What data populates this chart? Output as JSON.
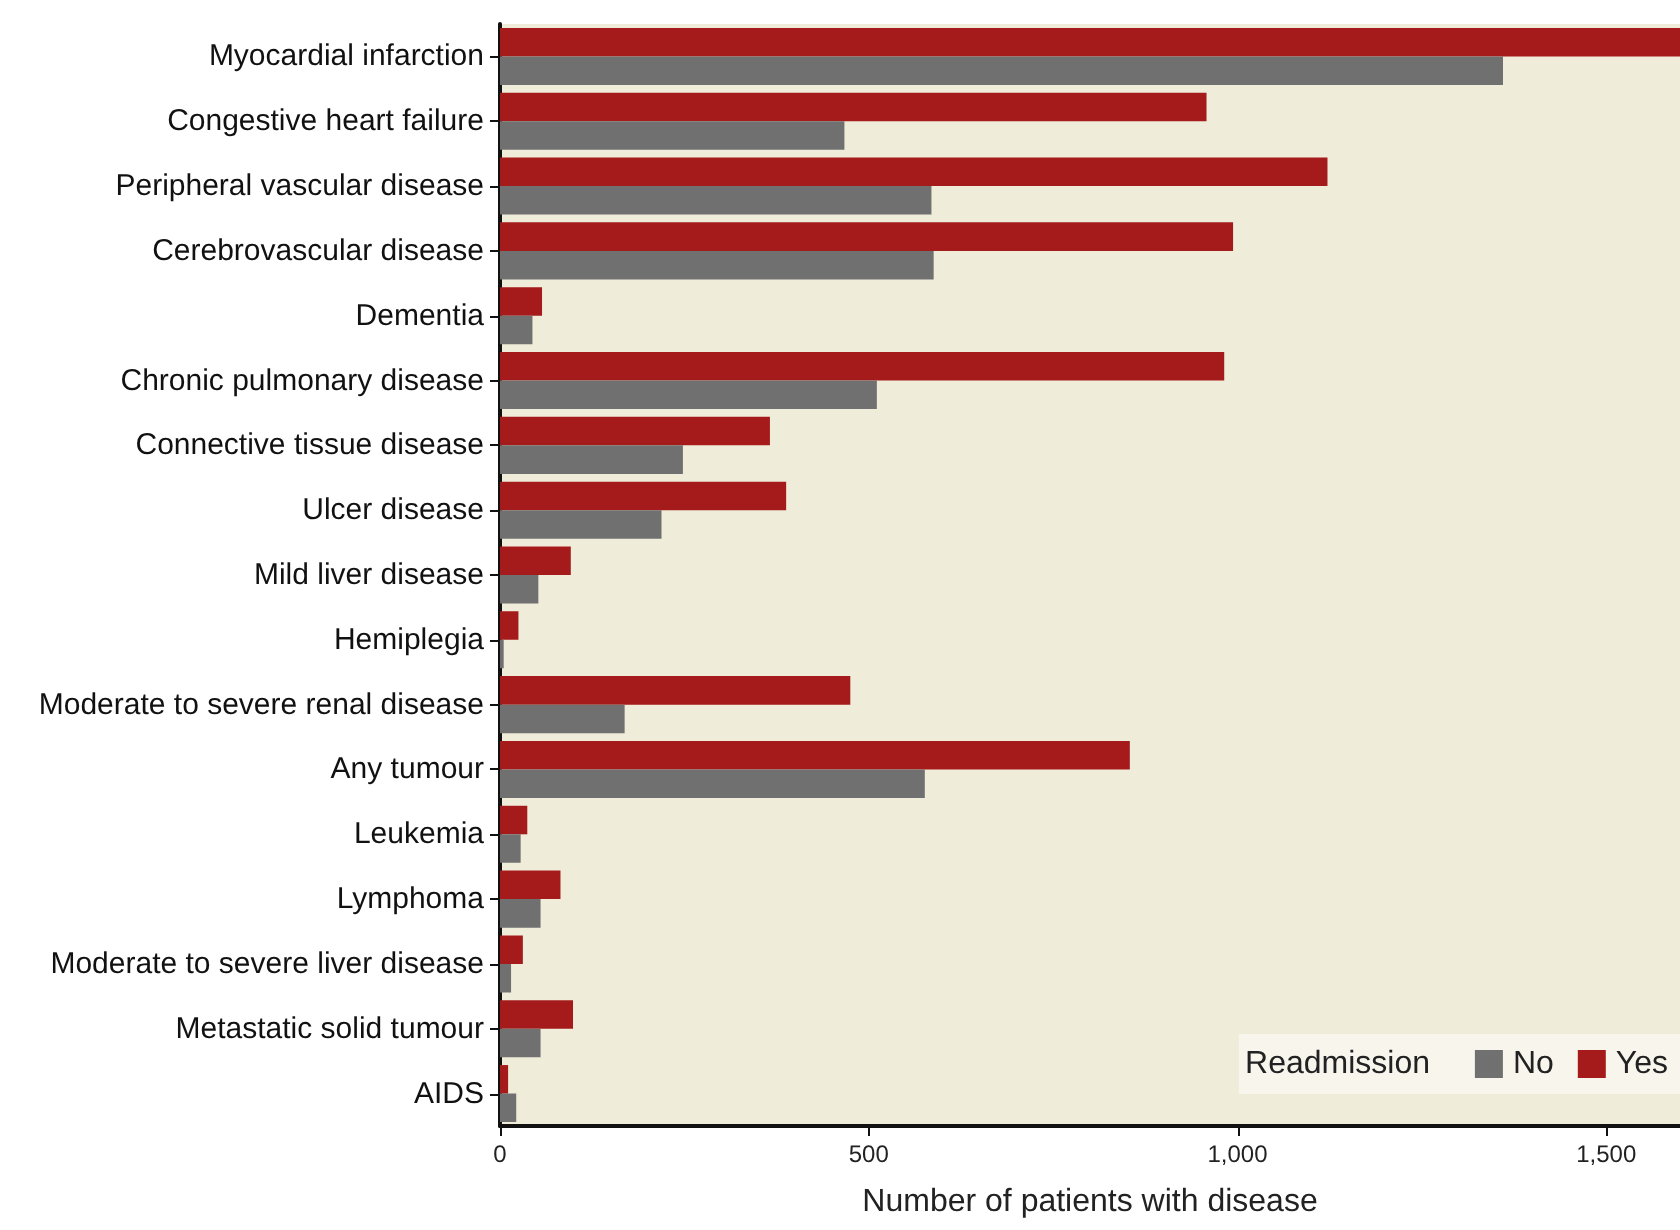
{
  "chart_data": {
    "type": "bar",
    "orientation": "horizontal",
    "xlabel": "Number of patients with disease",
    "legend_title": "Readmission",
    "legend": "bottom right",
    "grid": false,
    "categories": [
      "Myocardial infarction",
      "Congestive heart failure",
      "Peripheral vascular disease",
      "Cerebrovascular disease",
      "Dementia",
      "Chronic pulmonary disease",
      "Connective tissue disease",
      "Ulcer disease",
      "Mild liver disease",
      "Hemiplegia",
      "Moderate to severe renal disease",
      "Any tumour",
      "Leukemia",
      "Lymphoma",
      "Moderate to severe liver disease",
      "Metastatic solid tumour",
      "AIDS"
    ],
    "series": [
      {
        "name": "No",
        "color": "#707070",
        "values": [
          1360,
          467,
          585,
          588,
          44,
          511,
          248,
          219,
          52,
          5,
          169,
          576,
          28,
          55,
          15,
          55,
          22
        ]
      },
      {
        "name": "Yes",
        "color": "#a51b1b",
        "values": [
          1600,
          958,
          1122,
          994,
          57,
          982,
          366,
          388,
          96,
          25,
          475,
          854,
          37,
          82,
          31,
          99,
          11
        ]
      }
    ],
    "xlim": [
      0,
      1600
    ],
    "xticks": [
      0,
      500,
      {
        "value": 1000,
        "label": "1,000"
      },
      {
        "value": 1500,
        "label": "1,500"
      }
    ]
  }
}
